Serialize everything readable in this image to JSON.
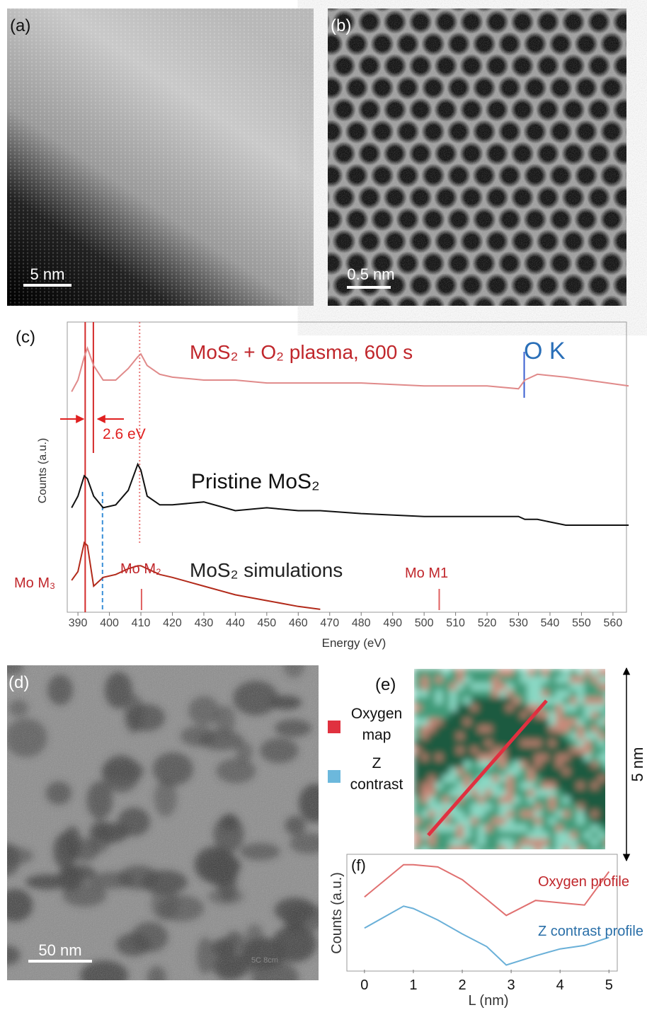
{
  "panels": {
    "a": {
      "label": "(a)",
      "scale_bar": "5 nm"
    },
    "b": {
      "label": "(b)",
      "scale_bar": "0.5 nm"
    },
    "d": {
      "label": "(d)",
      "scale_bar": "50 nm",
      "watermark": "5C 8cm"
    },
    "e": {
      "label": "(e)",
      "scale_bar": "5 nm",
      "legend": [
        {
          "lines": [
            "Oxygen",
            "map"
          ],
          "color": "#e0313f"
        },
        {
          "lines": [
            "Z",
            "contrast"
          ],
          "color": "#6cb8dc"
        }
      ]
    }
  },
  "chart_data": [
    {
      "type": "line",
      "label": "(c)",
      "x_label": "Energy (eV)",
      "y_label": "Counts (a.u.)",
      "x": [
        388,
        390,
        392,
        393,
        395,
        398,
        402,
        406,
        409,
        410,
        412,
        416,
        420,
        430,
        440,
        450,
        460,
        467,
        480,
        500,
        520,
        530,
        532,
        536,
        545,
        565
      ],
      "xlim": [
        386.6,
        564.3
      ],
      "ylim": [
        0,
        100
      ],
      "xticks": [
        390,
        400,
        410,
        420,
        430,
        440,
        450,
        460,
        470,
        480,
        490,
        500,
        510,
        520,
        530,
        540,
        550,
        560
      ],
      "series": [
        {
          "name": "MoS₂ + O₂ plasma, 600 s",
          "color": "#e08a8a",
          "values": [
            76,
            80,
            88,
            91,
            85,
            80,
            80,
            84,
            88,
            89,
            85,
            82,
            81,
            80,
            80,
            79,
            79,
            79,
            79,
            78,
            78,
            77,
            80,
            82,
            81,
            78
          ]
        },
        {
          "name": "Pristine MoS₂",
          "color": "#111111",
          "values": [
            36,
            40,
            47,
            46,
            40,
            36,
            37,
            42,
            51,
            49,
            40,
            37,
            37,
            38,
            35,
            36,
            35,
            35,
            34,
            33,
            33,
            33,
            32,
            32,
            30,
            30
          ]
        },
        {
          "name": "MoS₂ simulations",
          "color": "#b22a1a",
          "values": [
            11,
            14,
            24,
            23,
            9,
            12,
            13,
            15,
            16,
            16,
            15,
            13,
            12,
            9,
            6,
            4,
            2,
            1,
            null,
            null,
            null,
            null,
            null,
            null,
            null,
            null
          ]
        }
      ],
      "annotations": [
        "2.6 eV",
        "O K",
        "Mo M₃",
        "Mo M₂",
        "Mo M1"
      ],
      "reference_lines": [
        {
          "x": 392.3,
          "color": "#d42a2a",
          "style": "solid"
        },
        {
          "x": 394.9,
          "color": "#d42a2a",
          "style": "solid"
        },
        {
          "x": 409.6,
          "color": "#e87878",
          "style": "dotted"
        },
        {
          "x": 397.8,
          "color": "#3a8fd8",
          "style": "dashed"
        },
        {
          "x": 531.8,
          "color": "#3a5fd0",
          "style": "solid"
        },
        {
          "x": 504.8,
          "color": "#e06060",
          "style": "solid"
        },
        {
          "x": 410.2,
          "color": "#e06060",
          "style": "solid"
        }
      ]
    },
    {
      "type": "line",
      "label": "(f)",
      "x_label": "L (nm)",
      "y_label": "Counts (a.u.)",
      "x": [
        0,
        0.8,
        1.0,
        1.5,
        2.0,
        2.5,
        2.9,
        3.5,
        4.0,
        4.5,
        5.0
      ],
      "xlim": [
        -0.36,
        5.17
      ],
      "ylim": [
        0,
        100
      ],
      "xticks": [
        0,
        1,
        2,
        3,
        4,
        5
      ],
      "series": [
        {
          "name": "Oxygen profile",
          "color": "#e07070",
          "values": [
            63,
            91,
            91,
            89,
            78,
            61,
            47,
            60,
            58,
            56,
            85
          ]
        },
        {
          "name": "Z contrast profile",
          "color": "#6ab0d8",
          "values": [
            36,
            55,
            53,
            43,
            31,
            20,
            4,
            12,
            18,
            21,
            28
          ]
        }
      ]
    }
  ]
}
